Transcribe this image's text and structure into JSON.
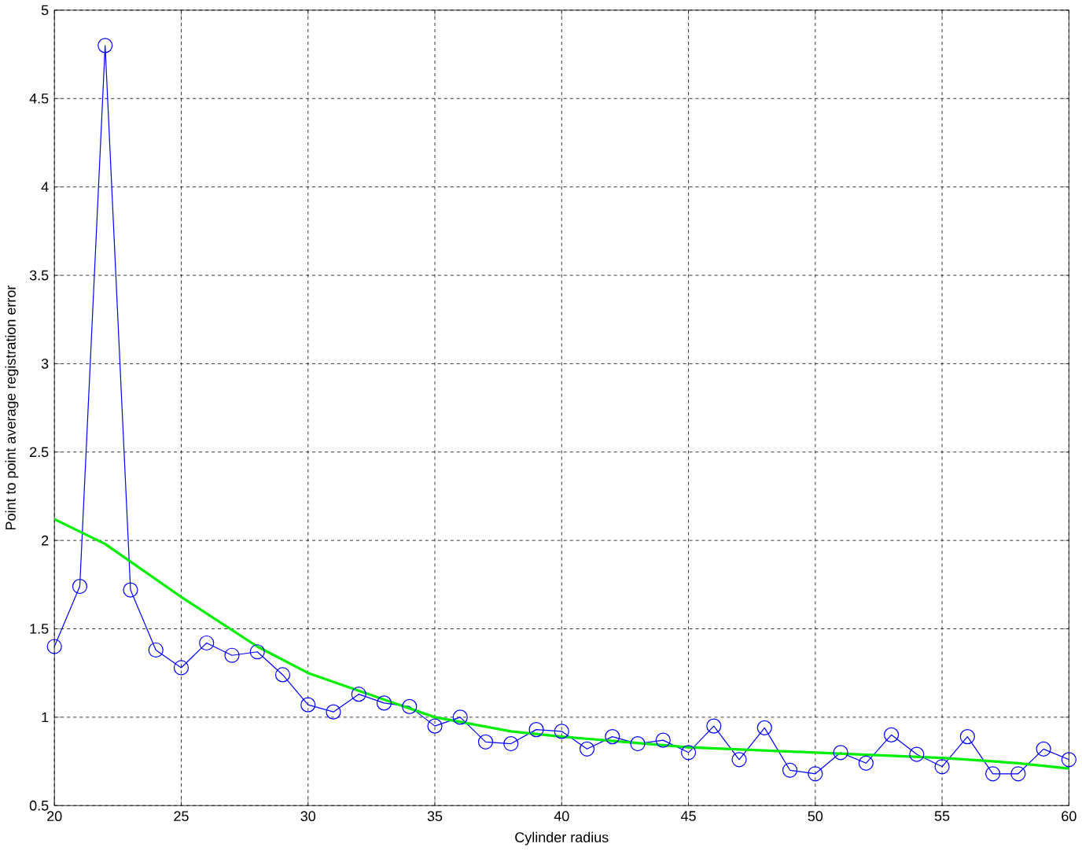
{
  "chart_data": {
    "type": "line",
    "xlabel": "Cylinder radius",
    "ylabel": "Point to point average registration error",
    "xlim": [
      20,
      60
    ],
    "ylim": [
      0.5,
      5
    ],
    "xticks": [
      20,
      25,
      30,
      35,
      40,
      45,
      50,
      55,
      60
    ],
    "yticks": [
      0.5,
      1,
      1.5,
      2,
      2.5,
      3,
      3.5,
      4,
      4.5,
      5
    ],
    "grid": true,
    "series": [
      {
        "color": "#0000ff",
        "marker": "circle",
        "x": [
          20,
          21,
          22,
          23,
          24,
          25,
          26,
          27,
          28,
          29,
          30,
          31,
          32,
          33,
          34,
          35,
          36,
          37,
          38,
          39,
          40,
          41,
          42,
          43,
          44,
          45,
          46,
          47,
          48,
          49,
          50,
          51,
          52,
          53,
          54,
          55,
          56,
          57,
          58,
          59,
          60
        ],
        "values": [
          1.4,
          1.74,
          4.8,
          1.72,
          1.38,
          1.28,
          1.42,
          1.35,
          1.37,
          1.24,
          1.07,
          1.03,
          1.13,
          1.08,
          1.06,
          0.95,
          1.0,
          0.86,
          0.85,
          0.93,
          0.92,
          0.82,
          0.89,
          0.85,
          0.87,
          0.8,
          0.95,
          0.76,
          0.94,
          0.7,
          0.68,
          0.8,
          0.74,
          0.9,
          0.79,
          0.72,
          0.89,
          0.68,
          0.68,
          0.82,
          0.76
        ]
      },
      {
        "color": "#00ee00",
        "marker": "none",
        "x": [
          20,
          22,
          25,
          28,
          30,
          33,
          35,
          38,
          40,
          45,
          50,
          55,
          58,
          60
        ],
        "values": [
          2.12,
          1.98,
          1.68,
          1.4,
          1.25,
          1.1,
          1.0,
          0.92,
          0.89,
          0.83,
          0.8,
          0.77,
          0.74,
          0.71
        ]
      }
    ]
  }
}
